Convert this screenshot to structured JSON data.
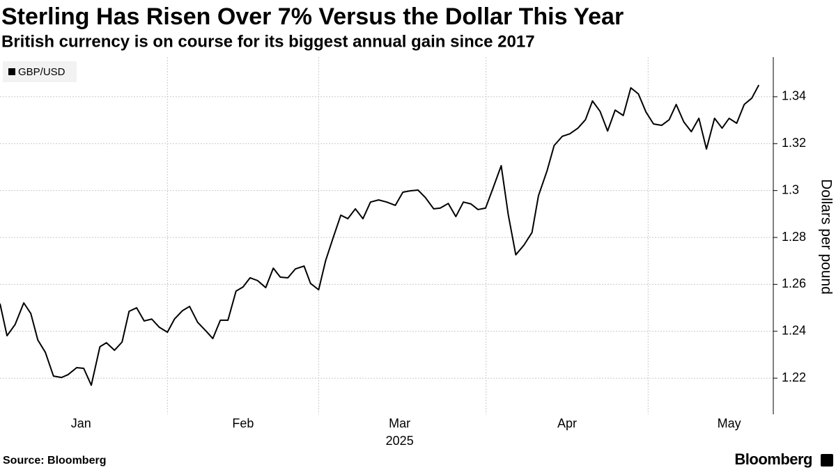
{
  "chart_data": {
    "type": "line",
    "title": "Sterling Has Risen Over 7% Versus the Dollar This Year",
    "subtitle": "British currency is on course for its biggest annual gain since 2017",
    "y_axis_label": "Dollars per pound",
    "x_year_label": "2025",
    "source": "Source: Bloomberg",
    "brand": "Bloomberg",
    "legend": "top-left",
    "grid": true,
    "xlim": [
      1,
      141.6
    ],
    "xticks": [
      {
        "value": 16,
        "label": "Jan"
      },
      {
        "value": 46,
        "label": "Feb"
      },
      {
        "value": 75,
        "label": "Mar"
      },
      {
        "value": 106,
        "label": "Apr"
      },
      {
        "value": 136,
        "label": "May"
      }
    ],
    "x_gridlines": [
      32,
      60,
      91,
      121
    ],
    "ylim": [
      1.2046,
      1.3569
    ],
    "yticks": [
      1.22,
      1.24,
      1.26,
      1.28,
      1.3,
      1.32,
      1.34
    ],
    "x": [
      1.0,
      2.3,
      3.8,
      5.4,
      6.7,
      8.0,
      9.4,
      10.9,
      12.4,
      13.6,
      15.2,
      16.5,
      17.9,
      19.5,
      20.7,
      22.2,
      23.6,
      24.9,
      26.3,
      27.7,
      29.1,
      30.5,
      32.0,
      33.3,
      34.8,
      36.1,
      37.6,
      39.1,
      40.4,
      41.8,
      43.2,
      44.7,
      46.0,
      47.3,
      48.7,
      50.2,
      51.6,
      52.9,
      54.3,
      55.7,
      57.3,
      58.5,
      60.0,
      61.3,
      62.7,
      64.1,
      65.4,
      66.8,
      68.2,
      69.6,
      71.1,
      72.6,
      74.2,
      75.6,
      77.0,
      78.4,
      79.8,
      81.3,
      82.5,
      84.0,
      85.4,
      86.8,
      88.2,
      89.5,
      90.9,
      92.2,
      93.8,
      95.1,
      96.5,
      98.0,
      99.5,
      100.7,
      102.3,
      103.6,
      105.1,
      106.5,
      108.0,
      109.4,
      110.7,
      112.1,
      113.5,
      114.9,
      116.4,
      117.8,
      119.2,
      120.6,
      122.0,
      123.5,
      124.9,
      126.2,
      127.6,
      129.0,
      130.4,
      131.8,
      133.3,
      134.7,
      136.0,
      137.4,
      138.8,
      140.2,
      141.5
    ],
    "series": [
      {
        "name": "GBP/USD",
        "color": "#000000",
        "values": [
          1.2518,
          1.2381,
          1.2429,
          1.2521,
          1.2476,
          1.2363,
          1.231,
          1.2209,
          1.2203,
          1.2215,
          1.2245,
          1.2242,
          1.217,
          1.2334,
          1.2351,
          1.2319,
          1.2354,
          1.2485,
          1.25,
          1.2444,
          1.2452,
          1.2417,
          1.2396,
          1.2452,
          1.2488,
          1.2506,
          1.2438,
          1.2402,
          1.2369,
          1.2447,
          1.2447,
          1.2571,
          1.2589,
          1.2628,
          1.2616,
          1.2586,
          1.2669,
          1.2631,
          1.2628,
          1.2666,
          1.2678,
          1.2604,
          1.2577,
          1.2702,
          1.28,
          1.2895,
          1.288,
          1.2922,
          1.288,
          1.2951,
          1.296,
          1.2951,
          1.2937,
          1.2993,
          1.2999,
          1.3002,
          1.2969,
          1.2922,
          1.2925,
          1.2945,
          1.2889,
          1.2951,
          1.2943,
          1.2919,
          1.2925,
          1.3005,
          1.3106,
          1.2898,
          1.2726,
          1.2767,
          1.2821,
          1.2978,
          1.3085,
          1.3192,
          1.3231,
          1.3242,
          1.3266,
          1.3302,
          1.3382,
          1.3338,
          1.3254,
          1.3343,
          1.332,
          1.3438,
          1.3412,
          1.3335,
          1.3284,
          1.3278,
          1.3302,
          1.3367,
          1.3293,
          1.3251,
          1.3308,
          1.3177,
          1.3308,
          1.3266,
          1.3308,
          1.3287,
          1.3367,
          1.3394,
          1.345
        ]
      }
    ]
  }
}
